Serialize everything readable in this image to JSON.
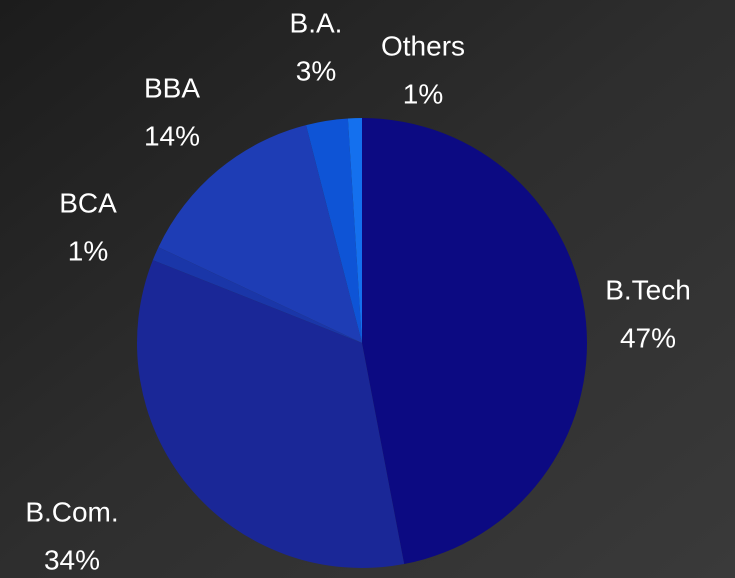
{
  "chart_data": {
    "type": "pie",
    "categories": [
      "B.Tech",
      "B.Com.",
      "BCA",
      "BBA",
      "B.A.",
      "Others"
    ],
    "values": [
      47,
      34,
      1,
      14,
      3,
      1
    ],
    "value_labels": [
      "47%",
      "34%",
      "1%",
      "14%",
      "3%",
      "1%"
    ],
    "colors": [
      "#0c0a82",
      "#1a2797",
      "#1a36a8",
      "#1e3db5",
      "#0e54d6",
      "#1470ee"
    ]
  }
}
